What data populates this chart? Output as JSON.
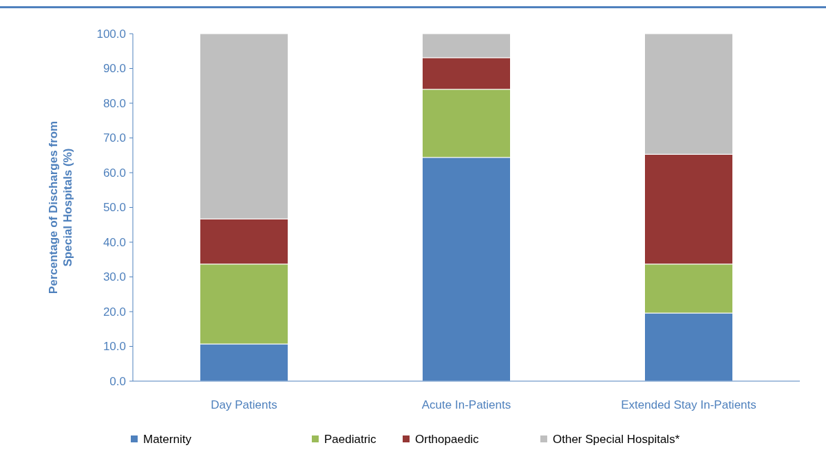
{
  "chart_data": {
    "type": "bar",
    "stacked": true,
    "ylabel": "Percentage of Discharges from Special Hospitals (%)",
    "categories": [
      "Day Patients",
      "Acute In-Patients",
      "Extended Stay In-Patients"
    ],
    "series": [
      {
        "name": "Maternity",
        "color": "#4f81bd",
        "values": [
          10.7,
          64.4,
          19.6
        ]
      },
      {
        "name": "Paediatric",
        "color": "#9bbb59",
        "values": [
          23.0,
          19.6,
          14.1
        ]
      },
      {
        "name": "Orthopaedic",
        "color": "#953735",
        "values": [
          13.0,
          9.1,
          31.6
        ]
      },
      {
        "name": "Other Special Hospitals*",
        "color": "#bfbfbf",
        "values": [
          53.3,
          6.9,
          34.7
        ]
      }
    ],
    "ylim": [
      0,
      100
    ],
    "yticks": [
      {
        "value": 0,
        "label": "0.0"
      },
      {
        "value": 10,
        "label": "10.0"
      },
      {
        "value": 20,
        "label": "20.0"
      },
      {
        "value": 30,
        "label": "30.0"
      },
      {
        "value": 40,
        "label": "40.0"
      },
      {
        "value": 50,
        "label": "50.0"
      },
      {
        "value": 60,
        "label": "60.0"
      },
      {
        "value": 70,
        "label": "70.0"
      },
      {
        "value": 80,
        "label": "80.0"
      },
      {
        "value": 90,
        "label": "90.0"
      },
      {
        "value": 100,
        "label": "100.0"
      }
    ],
    "grid": false,
    "legend": "bottom"
  }
}
